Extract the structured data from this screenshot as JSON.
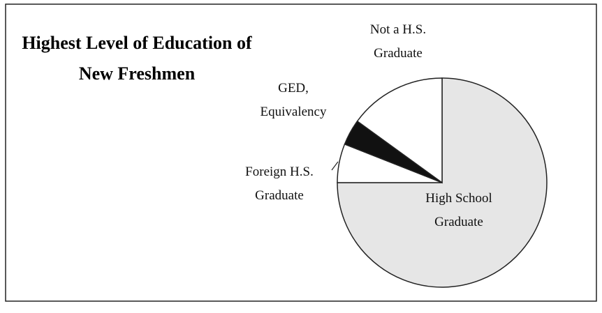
{
  "chart_data": {
    "type": "pie",
    "title": "Highest Level of Education of New Freshmen",
    "categories": [
      "High School Graduate",
      "Foreign H.S. Graduate",
      "GED, Equivalency",
      "Not a H.S. Graduate"
    ],
    "values": [
      75,
      6,
      4,
      15
    ],
    "colors": [
      "#e6e6e6",
      "#ffffff",
      "#111111",
      "#ffffff"
    ]
  }
}
